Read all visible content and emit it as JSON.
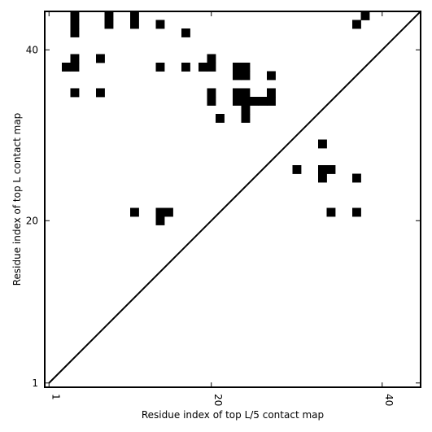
{
  "chart_data": {
    "type": "heatmap",
    "title": "",
    "xlabel": "Residue index of top L/5 contact map",
    "ylabel": "Residue index of top L contact map",
    "xlim": [
      0.5,
      44.5
    ],
    "ylim": [
      0.5,
      44.5
    ],
    "x_ticks": [
      1,
      20,
      40
    ],
    "y_ticks": [
      1,
      20,
      40
    ],
    "x_tick_labels": [
      "1",
      "20",
      "40"
    ],
    "y_tick_labels": [
      "1",
      "20",
      "40"
    ],
    "diagonal": {
      "from": [
        1,
        1
      ],
      "to": [
        44,
        44
      ]
    },
    "cell_color": "#000000",
    "background_color": "#ffffff",
    "upper_triangle_contacts": [
      [
        4,
        44
      ],
      [
        4,
        43
      ],
      [
        4,
        42
      ],
      [
        8,
        44
      ],
      [
        8,
        43
      ],
      [
        11,
        44
      ],
      [
        11,
        43
      ],
      [
        14,
        43
      ],
      [
        17,
        42
      ],
      [
        3,
        38
      ],
      [
        4,
        38
      ],
      [
        4,
        39
      ],
      [
        7,
        39
      ],
      [
        14,
        38
      ],
      [
        17,
        38
      ],
      [
        19,
        38
      ],
      [
        20,
        38
      ],
      [
        20,
        39
      ],
      [
        4,
        35
      ],
      [
        7,
        35
      ],
      [
        20,
        35
      ],
      [
        20,
        34
      ],
      [
        21,
        32
      ],
      [
        23,
        38
      ],
      [
        24,
        38
      ],
      [
        23,
        37
      ],
      [
        24,
        37
      ],
      [
        27,
        37
      ],
      [
        23,
        35
      ],
      [
        24,
        35
      ],
      [
        27,
        35
      ],
      [
        23,
        34
      ],
      [
        24,
        34
      ],
      [
        25,
        34
      ],
      [
        26,
        34
      ],
      [
        27,
        34
      ],
      [
        24,
        33
      ],
      [
        24,
        32
      ],
      [
        37,
        43
      ],
      [
        38,
        44
      ]
    ],
    "lower_triangle_contacts": [
      [
        33,
        29
      ],
      [
        30,
        26
      ],
      [
        33,
        26
      ],
      [
        34,
        26
      ],
      [
        33,
        25
      ],
      [
        37,
        25
      ],
      [
        34,
        21
      ],
      [
        37,
        21
      ],
      [
        11,
        21
      ],
      [
        14,
        21
      ],
      [
        15,
        21
      ],
      [
        14,
        20
      ]
    ]
  }
}
